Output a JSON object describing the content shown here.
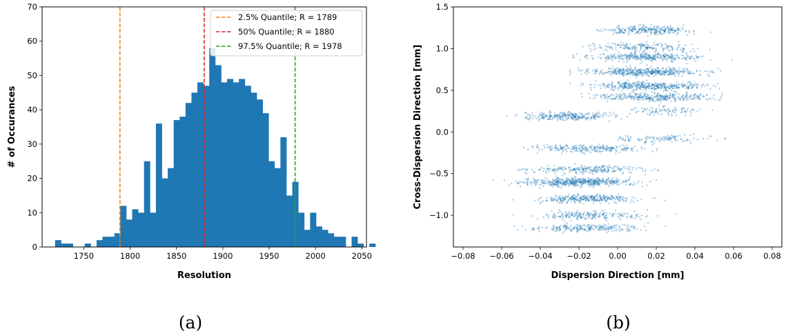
{
  "chart_data": [
    {
      "type": "bar",
      "caption": "(a)",
      "xlabel": "Resolution",
      "ylabel": "# of Occurances",
      "xlim": [
        1705,
        2055
      ],
      "ylim": [
        0,
        70
      ],
      "xticks": [
        1750,
        1800,
        1850,
        1900,
        1950,
        2000,
        2050
      ],
      "yticks": [
        0,
        10,
        20,
        30,
        40,
        50,
        60,
        70
      ],
      "bin_width": 6.4,
      "bin_start": 1719,
      "bar_color": "#1f77b4",
      "values": [
        2,
        1,
        1,
        0,
        0,
        1,
        0,
        2,
        3,
        3,
        4,
        12,
        8,
        11,
        10,
        25,
        10,
        36,
        20,
        23,
        37,
        38,
        42,
        45,
        48,
        47,
        58,
        53,
        48,
        49,
        48,
        49,
        47,
        45,
        43,
        39,
        25,
        23,
        32,
        15,
        19,
        10,
        5,
        10,
        6,
        5,
        4,
        3,
        3,
        0,
        3,
        1,
        0,
        1
      ],
      "lines": [
        {
          "label": "2.5% Quantile; R = 1789",
          "x": 1789,
          "color": "#ff7f0e"
        },
        {
          "label": "50% Quantile; R = 1880",
          "x": 1880,
          "color": "#d62728"
        },
        {
          "label": "97.5% Quantile; R = 1978",
          "x": 1978,
          "color": "#2ca02c"
        }
      ],
      "legend_position": "top-right"
    },
    {
      "type": "scatter",
      "caption": "(b)",
      "xlabel": "Dispersion Direction [mm]",
      "ylabel": "Cross-Dispersion Direction [mm]",
      "xlim": [
        -0.085,
        0.085
      ],
      "ylim": [
        -1.38,
        1.5
      ],
      "xticks": [
        -0.08,
        -0.06,
        -0.04,
        -0.02,
        0.0,
        0.02,
        0.04,
        0.06,
        0.08
      ],
      "xtick_labels": [
        "−0.08",
        "−0.06",
        "−0.04",
        "−0.02",
        "0.00",
        "0.02",
        "0.04",
        "0.06",
        "0.08"
      ],
      "yticks": [
        -1.0,
        -0.5,
        0.0,
        0.5,
        1.0,
        1.5
      ],
      "ytick_labels": [
        "−1.0",
        "−0.5",
        "0.0",
        "0.5",
        "1.0",
        "1.5"
      ],
      "point_color": "#1f77b4",
      "clusters": [
        {
          "x_center": 0.015,
          "x_spread": 0.012,
          "y": 1.22,
          "n": 260
        },
        {
          "x_center": 0.012,
          "x_spread": 0.014,
          "y": 1.02,
          "n": 180
        },
        {
          "x_center": 0.015,
          "x_spread": 0.014,
          "y": 0.9,
          "n": 320
        },
        {
          "x_center": 0.015,
          "x_spread": 0.015,
          "y": 0.72,
          "n": 420
        },
        {
          "x_center": 0.018,
          "x_spread": 0.015,
          "y": 0.55,
          "n": 380
        },
        {
          "x_center": 0.02,
          "x_spread": 0.015,
          "y": 0.42,
          "n": 320
        },
        {
          "x_center": 0.025,
          "x_spread": 0.009,
          "y": 0.25,
          "n": 90
        },
        {
          "x_center": -0.025,
          "x_spread": 0.012,
          "y": 0.19,
          "n": 260
        },
        {
          "x_center": 0.025,
          "x_spread": 0.012,
          "y": -0.08,
          "n": 110
        },
        {
          "x_center": -0.015,
          "x_spread": 0.014,
          "y": -0.2,
          "n": 230
        },
        {
          "x_center": -0.015,
          "x_spread": 0.015,
          "y": -0.45,
          "n": 230
        },
        {
          "x_center": -0.02,
          "x_spread": 0.014,
          "y": -0.6,
          "n": 480
        },
        {
          "x_center": -0.015,
          "x_spread": 0.013,
          "y": -0.8,
          "n": 300
        },
        {
          "x_center": -0.015,
          "x_spread": 0.014,
          "y": -1.0,
          "n": 200
        },
        {
          "x_center": -0.015,
          "x_spread": 0.014,
          "y": -1.15,
          "n": 220
        }
      ]
    }
  ]
}
